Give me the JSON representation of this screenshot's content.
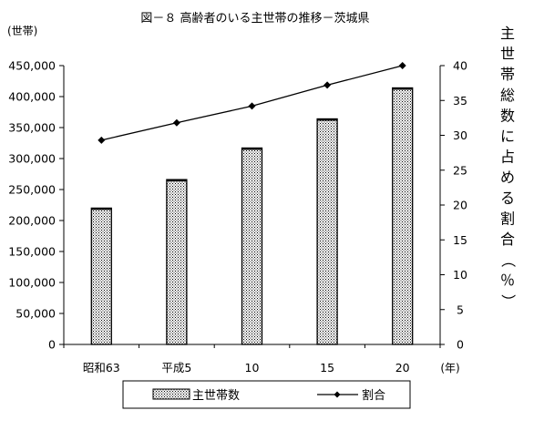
{
  "chart_data": {
    "type": "bar",
    "title": "図－８ 高齢者のいる主世帯の推移－茨城県",
    "categories": [
      "昭和63",
      "平成5",
      "10",
      "15",
      "20"
    ],
    "x_unit": "(年)",
    "y_left_unit": "(世帯)",
    "y_right_label": "主世帯総数に占める割合（％）",
    "y_left_ticks": [
      "0",
      "50,000",
      "100,000",
      "150,000",
      "200,000",
      "250,000",
      "300,000",
      "350,000",
      "400,000",
      "450,000"
    ],
    "y_right_ticks": [
      "0",
      "5",
      "10",
      "15",
      "20",
      "25",
      "30",
      "35",
      "40"
    ],
    "ylim_left": [
      0,
      450000
    ],
    "ylim_right": [
      0,
      40
    ],
    "series": [
      {
        "name": "主世帯数",
        "type": "bar",
        "axis": "left",
        "values": [
          220000,
          266000,
          317000,
          364000,
          414000
        ]
      },
      {
        "name": "割合",
        "type": "line",
        "axis": "right",
        "values": [
          29.3,
          31.8,
          34.2,
          37.2,
          40.0
        ]
      }
    ],
    "grid": false,
    "legend_position": "bottom"
  },
  "colors": {
    "bar_pattern": "#000000",
    "line": "#000000",
    "axis": "#000000"
  }
}
